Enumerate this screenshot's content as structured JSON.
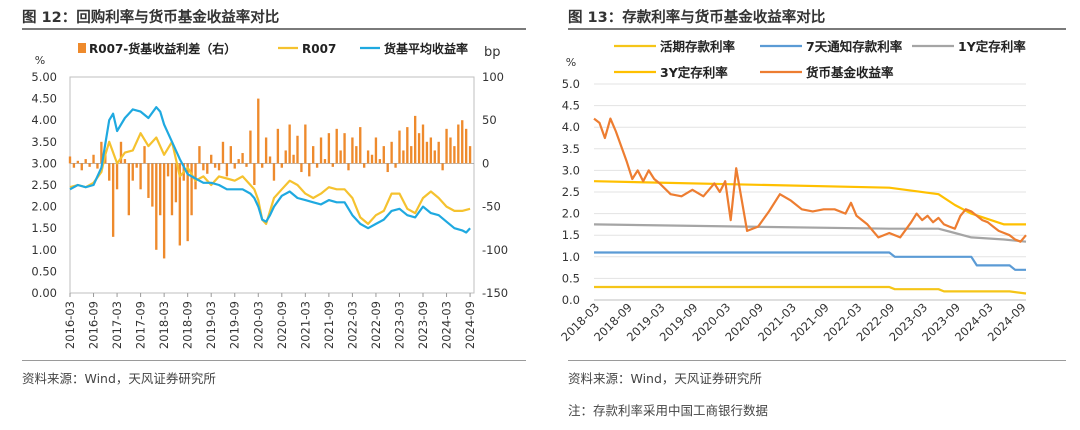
{
  "figures": [
    {
      "title": "图 12：回购利率与货币基金收益率对比",
      "source": "资料来源：Wind，天风证券研究所"
    },
    {
      "title": "图 13：存款利率与货币基金收益率对比",
      "source": "资料来源：Wind，天风证券研究所",
      "note": "注：存款利率采用中国工商银行数据"
    }
  ],
  "chart_data": [
    {
      "type": "bar",
      "left_unit": "%",
      "right_unit": "bp",
      "ylim": [
        0,
        5
      ],
      "y2lim": [
        -150,
        100
      ],
      "yticks": [
        "0.00",
        "0.50",
        "1.00",
        "1.50",
        "2.00",
        "2.50",
        "3.00",
        "3.50",
        "4.00",
        "4.50",
        "5.00"
      ],
      "y2ticks": [
        "-150",
        "-100",
        "-50",
        "0",
        "50",
        "100"
      ],
      "x_start": "2016-03",
      "x_end": "2024-10",
      "xticks": [
        "2016-03",
        "2016-09",
        "2017-03",
        "2017-09",
        "2018-03",
        "2018-09",
        "2019-03",
        "2019-09",
        "2020-03",
        "2020-09",
        "2021-03",
        "2021-09",
        "2022-03",
        "2022-09",
        "2023-03",
        "2023-09",
        "2024-03",
        "2024-09"
      ],
      "legend_placement": "top",
      "series": [
        {
          "name": "R007-货基收益利差（右）",
          "type": "bar",
          "axis": "right",
          "color": "#EE8A2C",
          "x": [
            "2016-03",
            "2016-04",
            "2016-05",
            "2016-06",
            "2016-07",
            "2016-08",
            "2016-09",
            "2016-10",
            "2016-11",
            "2016-12",
            "2017-01",
            "2017-02",
            "2017-03",
            "2017-04",
            "2017-05",
            "2017-06",
            "2017-07",
            "2017-08",
            "2017-09",
            "2017-10",
            "2017-11",
            "2017-12",
            "2018-01",
            "2018-02",
            "2018-03",
            "2018-04",
            "2018-05",
            "2018-06",
            "2018-07",
            "2018-08",
            "2018-09",
            "2018-10",
            "2018-11",
            "2018-12",
            "2019-01",
            "2019-02",
            "2019-03",
            "2019-04",
            "2019-05",
            "2019-06",
            "2019-07",
            "2019-08",
            "2019-09",
            "2019-10",
            "2019-11",
            "2019-12",
            "2020-01",
            "2020-02",
            "2020-03",
            "2020-04",
            "2020-05",
            "2020-06",
            "2020-07",
            "2020-08",
            "2020-09",
            "2020-10",
            "2020-11",
            "2020-12",
            "2021-01",
            "2021-02",
            "2021-03",
            "2021-04",
            "2021-05",
            "2021-06",
            "2021-07",
            "2021-08",
            "2021-09",
            "2021-10",
            "2021-11",
            "2021-12",
            "2022-01",
            "2022-02",
            "2022-03",
            "2022-04",
            "2022-05",
            "2022-06",
            "2022-07",
            "2022-08",
            "2022-09",
            "2022-10",
            "2022-11",
            "2022-12",
            "2023-01",
            "2023-02",
            "2023-03",
            "2023-04",
            "2023-05",
            "2023-06",
            "2023-07",
            "2023-08",
            "2023-09",
            "2023-10",
            "2023-11",
            "2023-12",
            "2024-01",
            "2024-02",
            "2024-03",
            "2024-04",
            "2024-05",
            "2024-06",
            "2024-07",
            "2024-08",
            "2024-09"
          ],
          "values": [
            8,
            -5,
            3,
            -8,
            5,
            -4,
            10,
            -6,
            25,
            15,
            -20,
            -85,
            -30,
            25,
            5,
            -60,
            -20,
            -5,
            -30,
            20,
            -40,
            -50,
            -100,
            -60,
            -110,
            -15,
            -60,
            -45,
            -95,
            -20,
            -90,
            -60,
            -30,
            20,
            -8,
            -12,
            10,
            -5,
            -8,
            25,
            -15,
            20,
            -6,
            5,
            12,
            -4,
            38,
            -25,
            75,
            -5,
            30,
            8,
            -20,
            40,
            -5,
            15,
            45,
            10,
            32,
            -10,
            45,
            -15,
            20,
            -5,
            30,
            5,
            35,
            -4,
            40,
            15,
            35,
            -8,
            30,
            20,
            42,
            -5,
            15,
            10,
            30,
            5,
            20,
            -10,
            25,
            -5,
            38,
            15,
            42,
            20,
            55,
            35,
            45,
            25,
            30,
            15,
            25,
            -8,
            40,
            30,
            20,
            45,
            50,
            40,
            20
          ]
        },
        {
          "name": "R007",
          "type": "line",
          "axis": "left",
          "color": "#F5C22F",
          "x": [
            "2016-03",
            "2016-05",
            "2016-07",
            "2016-09",
            "2016-11",
            "2016-12",
            "2017-01",
            "2017-03",
            "2017-05",
            "2017-07",
            "2017-09",
            "2017-11",
            "2018-01",
            "2018-03",
            "2018-05",
            "2018-07",
            "2018-09",
            "2018-11",
            "2019-01",
            "2019-03",
            "2019-05",
            "2019-07",
            "2019-09",
            "2019-11",
            "2020-01",
            "2020-02",
            "2020-03",
            "2020-04",
            "2020-05",
            "2020-07",
            "2020-09",
            "2020-11",
            "2021-01",
            "2021-03",
            "2021-05",
            "2021-07",
            "2021-09",
            "2021-11",
            "2022-01",
            "2022-03",
            "2022-05",
            "2022-07",
            "2022-09",
            "2022-11",
            "2023-01",
            "2023-03",
            "2023-05",
            "2023-07",
            "2023-09",
            "2023-11",
            "2024-01",
            "2024-03",
            "2024-05",
            "2024-07",
            "2024-09"
          ],
          "values": [
            2.45,
            2.5,
            2.45,
            2.55,
            2.8,
            3.2,
            3.5,
            3.0,
            3.25,
            3.3,
            3.7,
            3.4,
            3.6,
            3.2,
            3.5,
            2.7,
            2.9,
            2.6,
            2.7,
            2.5,
            2.7,
            2.65,
            2.6,
            2.7,
            2.5,
            2.4,
            2.15,
            1.7,
            1.6,
            2.2,
            2.4,
            2.6,
            2.5,
            2.3,
            2.2,
            2.3,
            2.45,
            2.4,
            2.4,
            2.2,
            1.75,
            1.6,
            1.8,
            1.9,
            2.3,
            2.3,
            1.95,
            1.85,
            2.2,
            2.35,
            2.2,
            2.0,
            1.9,
            1.9,
            1.95
          ]
        },
        {
          "name": "货基平均收益率",
          "type": "line",
          "axis": "left",
          "color": "#1FA9E0",
          "x": [
            "2016-03",
            "2016-05",
            "2016-07",
            "2016-09",
            "2016-11",
            "2017-01",
            "2017-02",
            "2017-03",
            "2017-05",
            "2017-07",
            "2017-09",
            "2017-11",
            "2018-01",
            "2018-02",
            "2018-03",
            "2018-05",
            "2018-07",
            "2018-09",
            "2018-11",
            "2019-01",
            "2019-03",
            "2019-05",
            "2019-07",
            "2019-09",
            "2019-11",
            "2020-01",
            "2020-02",
            "2020-03",
            "2020-04",
            "2020-05",
            "2020-06",
            "2020-07",
            "2020-09",
            "2020-11",
            "2021-01",
            "2021-03",
            "2021-05",
            "2021-07",
            "2021-09",
            "2021-11",
            "2022-01",
            "2022-03",
            "2022-05",
            "2022-07",
            "2022-09",
            "2022-11",
            "2023-01",
            "2023-03",
            "2023-05",
            "2023-07",
            "2023-09",
            "2023-11",
            "2024-01",
            "2024-03",
            "2024-05",
            "2024-07",
            "2024-08",
            "2024-09"
          ],
          "values": [
            2.4,
            2.5,
            2.45,
            2.5,
            2.9,
            4.0,
            4.15,
            3.75,
            4.05,
            4.25,
            4.2,
            4.05,
            4.3,
            4.2,
            3.9,
            3.5,
            3.1,
            2.75,
            2.65,
            2.55,
            2.55,
            2.5,
            2.4,
            2.4,
            2.4,
            2.3,
            2.2,
            2.0,
            1.7,
            1.65,
            1.8,
            2.0,
            2.25,
            2.35,
            2.2,
            2.15,
            2.1,
            2.05,
            2.15,
            2.1,
            2.1,
            1.8,
            1.6,
            1.5,
            1.6,
            1.7,
            1.9,
            1.95,
            1.8,
            1.75,
            2.0,
            1.85,
            1.8,
            1.65,
            1.5,
            1.45,
            1.4,
            1.5
          ]
        }
      ]
    },
    {
      "type": "line",
      "left_unit": "%",
      "ylim": [
        0,
        5
      ],
      "yticks": [
        "0.0",
        "0.5",
        "1.0",
        "1.5",
        "2.0",
        "2.5",
        "3.0",
        "3.5",
        "4.0",
        "4.5",
        "5.0"
      ],
      "x_start": "2018-03",
      "x_end": "2024-10",
      "xticks": [
        "2018-03",
        "2018-09",
        "2019-03",
        "2019-09",
        "2020-03",
        "2020-09",
        "2021-03",
        "2021-09",
        "2022-03",
        "2022-09",
        "2023-03",
        "2023-09",
        "2024-03",
        "2024-09"
      ],
      "legend_placement": "top",
      "series": [
        {
          "name": "活期存款利率",
          "color": "#F5C518",
          "x": [
            "2018-03",
            "2022-09",
            "2022-10",
            "2023-06",
            "2023-07",
            "2024-07",
            "2024-10"
          ],
          "values": [
            0.3,
            0.3,
            0.25,
            0.25,
            0.2,
            0.2,
            0.15
          ]
        },
        {
          "name": "7天通知存款利率",
          "color": "#5B9BD5",
          "x": [
            "2018-03",
            "2022-09",
            "2022-10",
            "2023-12",
            "2024-01",
            "2024-07",
            "2024-08",
            "2024-10"
          ],
          "values": [
            1.1,
            1.1,
            1.0,
            1.0,
            0.8,
            0.8,
            0.7,
            0.7
          ]
        },
        {
          "name": "1Y定存利率",
          "color": "#A5A5A5",
          "x": [
            "2018-03",
            "2022-09",
            "2023-06",
            "2023-09",
            "2023-12",
            "2024-06",
            "2024-10"
          ],
          "values": [
            1.75,
            1.65,
            1.65,
            1.55,
            1.45,
            1.4,
            1.35
          ]
        },
        {
          "name": "3Y定存利率",
          "color": "#FFC000",
          "x": [
            "2018-03",
            "2022-09",
            "2023-06",
            "2023-09",
            "2023-12",
            "2024-06",
            "2024-10"
          ],
          "values": [
            2.75,
            2.6,
            2.45,
            2.2,
            2.0,
            1.75,
            1.75
          ]
        },
        {
          "name": "货币基金收益率",
          "color": "#ED7D31",
          "x": [
            "2018-03",
            "2018-04",
            "2018-05",
            "2018-06",
            "2018-07",
            "2018-09",
            "2018-10",
            "2018-11",
            "2018-12",
            "2019-01",
            "2019-02",
            "2019-03",
            "2019-05",
            "2019-07",
            "2019-09",
            "2019-11",
            "2020-01",
            "2020-02",
            "2020-03",
            "2020-04",
            "2020-05",
            "2020-07",
            "2020-09",
            "2020-11",
            "2021-01",
            "2021-03",
            "2021-05",
            "2021-07",
            "2021-09",
            "2021-11",
            "2022-01",
            "2022-02",
            "2022-03",
            "2022-05",
            "2022-07",
            "2022-09",
            "2022-11",
            "2023-01",
            "2023-02",
            "2023-03",
            "2023-04",
            "2023-05",
            "2023-06",
            "2023-07",
            "2023-08",
            "2023-09",
            "2023-10",
            "2023-11",
            "2023-12",
            "2024-01",
            "2024-02",
            "2024-03",
            "2024-04",
            "2024-05",
            "2024-06",
            "2024-07",
            "2024-08",
            "2024-09",
            "2024-10"
          ],
          "values": [
            4.2,
            4.1,
            3.75,
            4.2,
            3.9,
            3.2,
            2.8,
            3.0,
            2.75,
            3.0,
            2.8,
            2.7,
            2.45,
            2.4,
            2.55,
            2.4,
            2.7,
            2.5,
            2.75,
            1.85,
            3.05,
            1.6,
            1.7,
            2.05,
            2.45,
            2.3,
            2.1,
            2.05,
            2.1,
            2.1,
            2.0,
            2.25,
            1.95,
            1.75,
            1.45,
            1.55,
            1.45,
            1.8,
            2.0,
            1.85,
            1.95,
            1.8,
            1.9,
            1.75,
            1.7,
            1.65,
            1.95,
            2.1,
            2.05,
            1.95,
            1.85,
            1.8,
            1.7,
            1.6,
            1.55,
            1.5,
            1.4,
            1.35,
            1.5
          ]
        }
      ]
    }
  ]
}
